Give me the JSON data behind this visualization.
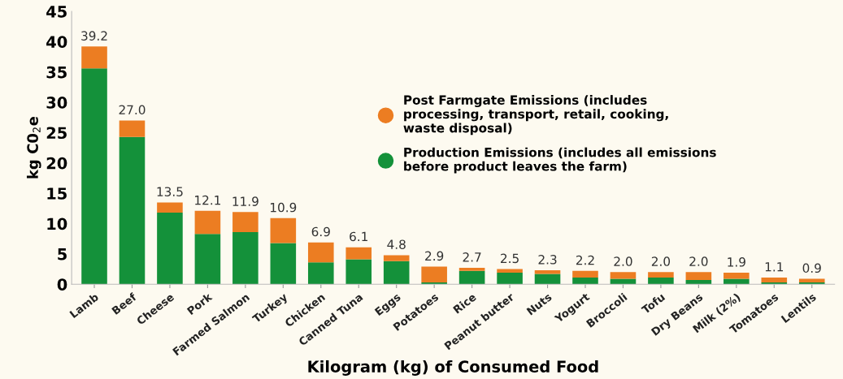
{
  "chart_data": {
    "type": "bar",
    "stacked": true,
    "xlabel": "Kilogram (kg) of Consumed Food",
    "ylabel": "kg C0$_{2}$e",
    "categories": [
      "Lamb",
      "Beef",
      "Cheese",
      "Pork",
      "Farmed Salmon",
      "Turkey",
      "Chicken",
      "Canned Tuna",
      "Eggs",
      "Potatoes",
      "Rice",
      "Peanut butter",
      "Nuts",
      "Yogurt",
      "Broccoli",
      "Tofu",
      "Dry Beans",
      "Milk (2%)",
      "Tomatoes",
      "Lentils"
    ],
    "series": [
      {
        "name": "Production Emissions (includes all emissions\nbefore product leaves the farm)",
        "color": "#14913a",
        "values": [
          35.6,
          24.3,
          11.8,
          8.3,
          8.6,
          6.8,
          3.6,
          4.1,
          3.8,
          0.3,
          2.2,
          1.9,
          1.7,
          1.1,
          0.9,
          1.1,
          0.7,
          0.9,
          0.3,
          0.3
        ]
      },
      {
        "name": "Post Farmgate Emissions (includes\nprocessing, transport, retail, cooking,\nwaste disposal)",
        "color": "#ec7d22",
        "values": [
          3.6,
          2.7,
          1.7,
          3.8,
          3.3,
          4.1,
          3.3,
          2.0,
          1.0,
          2.6,
          0.5,
          0.6,
          0.6,
          1.1,
          1.1,
          0.9,
          1.3,
          1.0,
          0.8,
          0.6
        ]
      }
    ],
    "totals": [
      "39.2",
      "27.0",
      "13.5",
      "12.1",
      "11.9",
      "10.9",
      "6.9",
      "6.1",
      "4.8",
      "2.9",
      "2.7",
      "2.5",
      "2.3",
      "2.2",
      "2.0",
      "2.0",
      "2.0",
      "1.9",
      "1.1",
      "0.9"
    ],
    "ylim": [
      0,
      45
    ],
    "yticks": [
      0,
      5,
      10,
      15,
      20,
      25,
      30,
      35,
      40,
      45
    ],
    "grid": false,
    "legend": "right"
  }
}
